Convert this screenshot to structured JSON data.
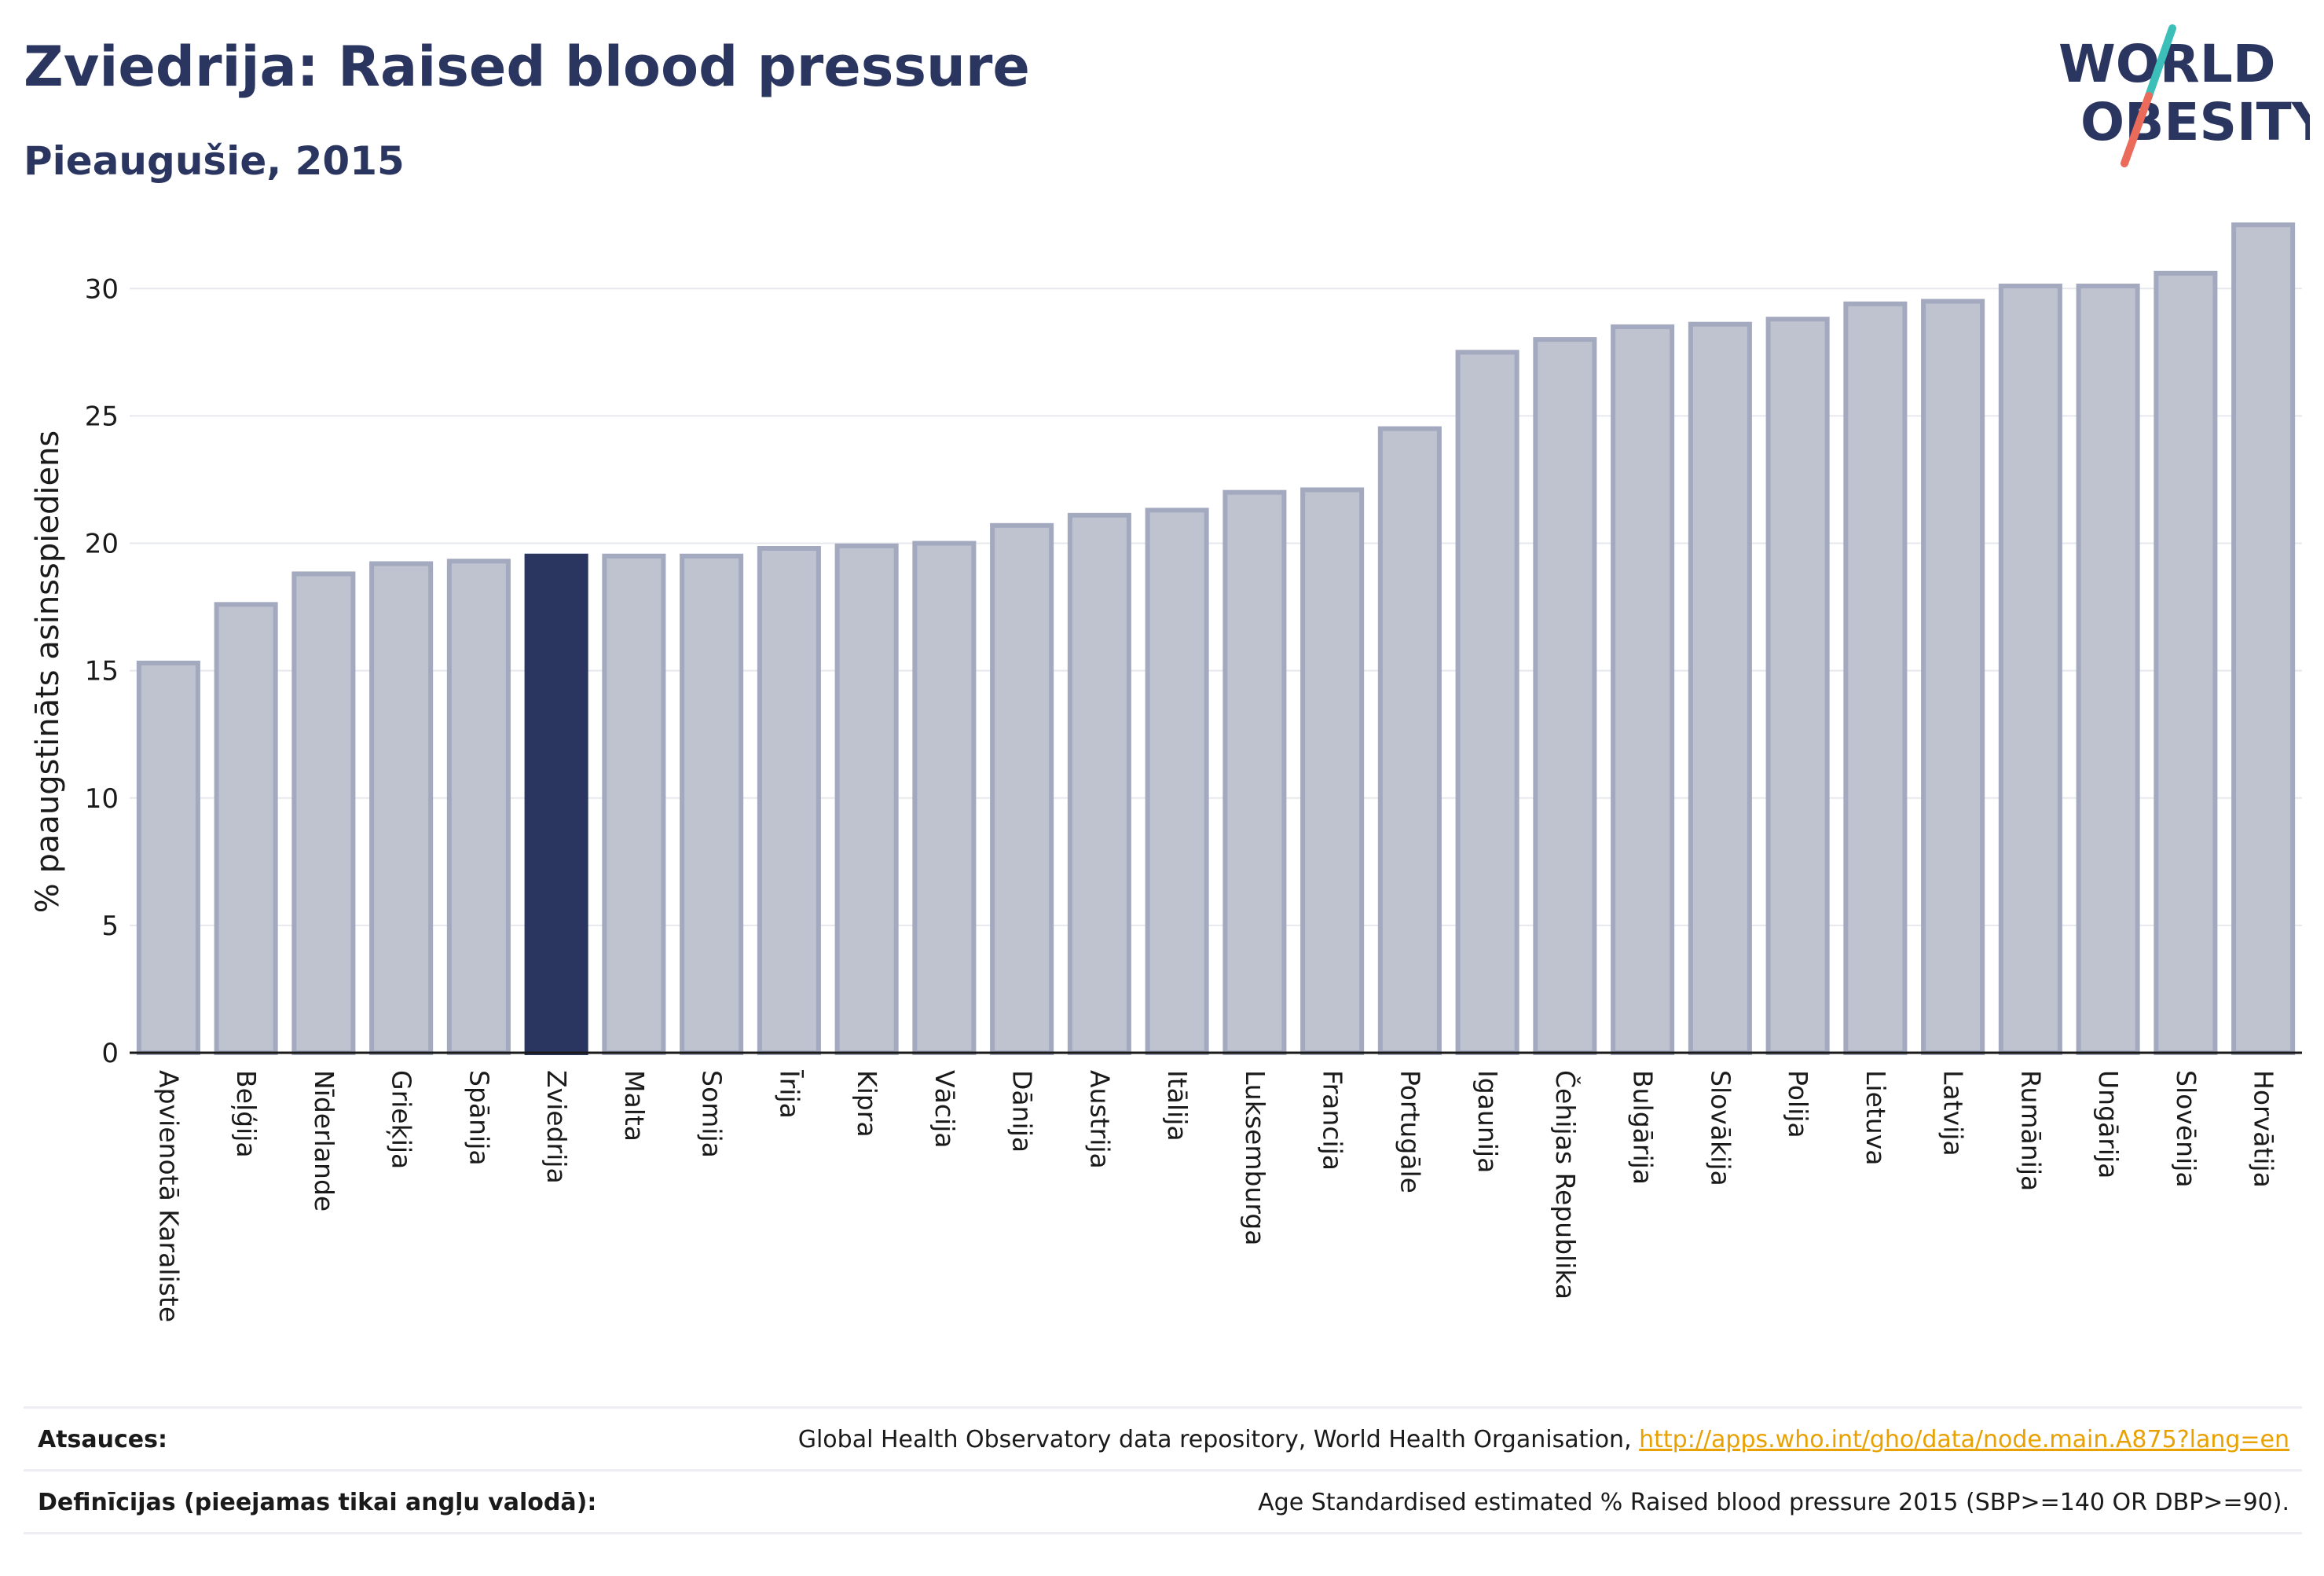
{
  "title": "Zviedrija: Raised blood pressure",
  "subtitle": "Pieaugušie, 2015",
  "logo": {
    "line1": "WORLD",
    "line2": "OBESITY"
  },
  "colors": {
    "highlight": "#2a3560",
    "bar_fill": "#bfc3d0",
    "bar_stroke": "#a3a9bf",
    "grid": "#e6e8ee",
    "logo_teal": "#3bbfb8",
    "logo_coral": "#ea6b5a",
    "link": "#e8a100"
  },
  "chart_data": {
    "type": "bar",
    "title": "Zviedrija: Raised blood pressure",
    "subtitle": "Pieaugušie, 2015",
    "xlabel": "",
    "ylabel": "% paaugstināts asinsspiediens",
    "ylim": [
      0,
      33
    ],
    "yticks": [
      0,
      5,
      10,
      15,
      20,
      25,
      30
    ],
    "grid": true,
    "highlight": "Zviedrija",
    "categories": [
      "Apvienotā Karaliste",
      "Beļģija",
      "Nīderlande",
      "Grieķija",
      "Spānija",
      "Zviedrija",
      "Malta",
      "Somija",
      "Īrija",
      "Kipra",
      "Vācija",
      "Dānija",
      "Austrija",
      "Itālija",
      "Luksemburga",
      "Francija",
      "Portugāle",
      "Igaunija",
      "Čehijas Republika",
      "Bulgārija",
      "Slovākija",
      "Polija",
      "Lietuva",
      "Latvija",
      "Rumānija",
      "Ungārija",
      "Slovēnija",
      "Horvātija"
    ],
    "values": [
      15.3,
      17.6,
      18.8,
      19.2,
      19.3,
      19.5,
      19.5,
      19.5,
      19.8,
      19.9,
      20.0,
      20.7,
      21.1,
      21.3,
      22.0,
      22.1,
      24.5,
      27.5,
      28.0,
      28.5,
      28.6,
      28.8,
      29.4,
      29.5,
      30.1,
      30.1,
      30.6,
      32.5
    ]
  },
  "sources": {
    "label": "Atsauces:",
    "text": "Global Health Observatory data repository, World Health Organisation, ",
    "link": "http://apps.who.int/gho/data/node.main.A875?lang=en"
  },
  "definitions": {
    "label": "Definīcijas (pieejamas tikai angļu valodā):",
    "text": "Age Standardised estimated % Raised blood pressure 2015 (SBP>=140 OR DBP>=90)."
  }
}
